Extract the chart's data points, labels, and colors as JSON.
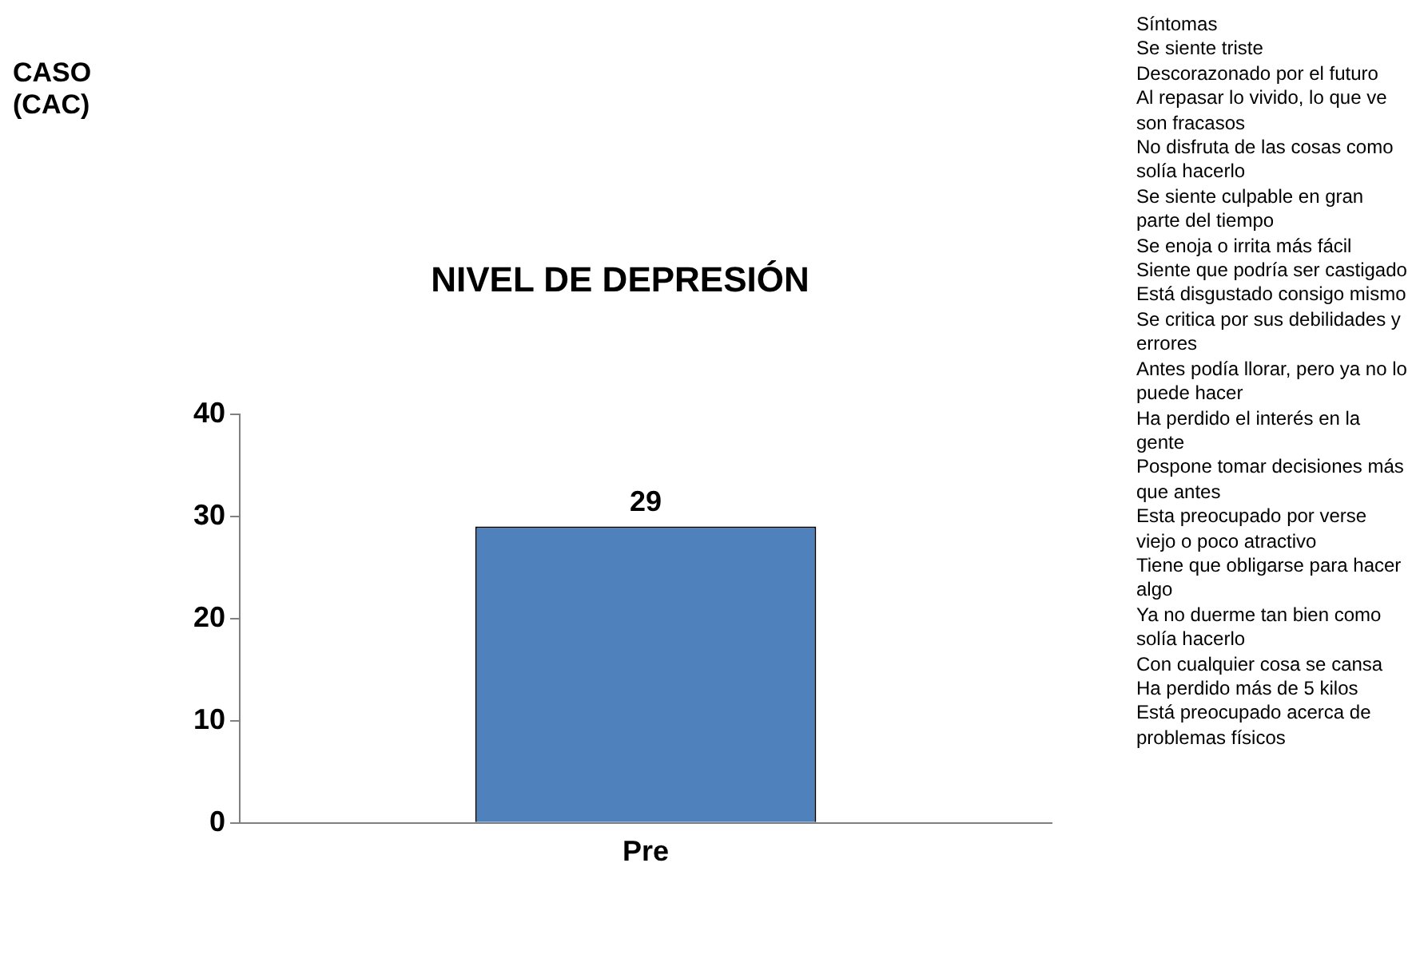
{
  "chart_data": {
    "type": "bar",
    "title": "NIVEL DE DEPRESIÓN",
    "categories": [
      "Pre"
    ],
    "values": [
      29
    ],
    "color": "#4f81bd",
    "ylim": [
      0,
      40
    ],
    "yticks": [
      0,
      10,
      20,
      30,
      40
    ],
    "grid": false,
    "data_labels": true,
    "annotations": [
      "CASO (CAC)",
      "Síntomas",
      "Se siente triste",
      "Descorazonado por el futuro",
      "Al repasar lo vivido, lo que ve son fracasos",
      "No disfruta de las cosas como solía hacerlo",
      "Se siente culpable en gran parte del tiempo",
      "Se enoja o irrita más fácil",
      "Siente que podría ser castigado",
      "Está disgustado consigo mismo",
      "Se critica por sus debilidades y errores",
      "Antes podía llorar, pero ya no lo puede hacer",
      "Ha perdido el interés en la gente",
      "Pospone tomar decisiones más que antes",
      "Esta preocupado por verse viejo o poco atractivo",
      "Tiene que obligarse para hacer algo",
      "Ya no duerme tan bien como solía hacerlo",
      "Con cualquier cosa se cansa",
      "Ha perdido más de 5 kilos",
      "Está preocupado acerca de problemas físicos"
    ]
  }
}
